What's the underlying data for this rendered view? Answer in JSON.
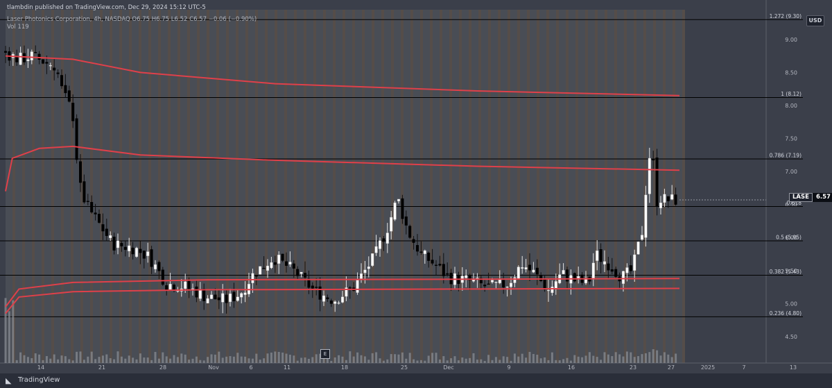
{
  "header": {
    "publisher": "tlambdin published on TradingView.com, Dec 29, 2024 15:12 UTC-5",
    "symbol_line": "Laser Photonics Corporation, 4h, NASDAQ  O6.75  H6.75  L6.52  C6.57  −0.06 (−0.90%)",
    "vol_line": "Vol  119"
  },
  "currency": "USD",
  "price_label": {
    "ticker": "LASE",
    "value": "6.57"
  },
  "footer": {
    "logo_icon": "tradingview-logo-icon",
    "text": "TradingView"
  },
  "earnings_marker": "E",
  "colors": {
    "background": "#3b3f4a",
    "band_session": "#56595f",
    "band_extended": "#6b5a48",
    "up_candle": "#ffffff",
    "down_candle": "#000000",
    "vwap_line": "#e0404a",
    "fib_line": "#000000",
    "volume_bar": "#8c8f96"
  },
  "chart_data": {
    "type": "candlestick",
    "x_tick_labels": [
      "14",
      "21",
      "28",
      "Nov",
      "6",
      "11",
      "18",
      "25",
      "Dec",
      "9",
      "16",
      "23",
      "27",
      "2025",
      "7",
      "13"
    ],
    "y_tick_labels": [
      "9.00",
      "8.50",
      "8.00",
      "7.50",
      "7.00",
      "6.50",
      "6.00",
      "5.50",
      "5.00",
      "4.50"
    ],
    "y_ticks": [
      9.0,
      8.5,
      8.0,
      7.5,
      7.0,
      6.5,
      6.0,
      5.5,
      5.0,
      4.5
    ],
    "ylim": [
      4.1,
      9.45
    ],
    "fib_levels": [
      {
        "label": "1.272 (9.30)",
        "price": 9.3
      },
      {
        "label": "1 (8.12)",
        "price": 8.12
      },
      {
        "label": "0.786 (7.19)",
        "price": 7.19
      },
      {
        "label": "0.618",
        "price": 6.47
      },
      {
        "label": "0.5 (5.95)",
        "price": 5.95
      },
      {
        "label": "0.382 (5.43)",
        "price": 5.43
      },
      {
        "label": "0.236 (4.80)",
        "price": 4.8
      }
    ],
    "close_path": [
      [
        0,
        8.8
      ],
      [
        0.02,
        8.7
      ],
      [
        0.04,
        8.75
      ],
      [
        0.06,
        8.65
      ],
      [
        0.075,
        8.6
      ],
      [
        0.085,
        8.2
      ],
      [
        0.1,
        7.9
      ],
      [
        0.11,
        6.8
      ],
      [
        0.12,
        6.5
      ],
      [
        0.14,
        6.2
      ],
      [
        0.16,
        5.9
      ],
      [
        0.19,
        5.85
      ],
      [
        0.215,
        5.7
      ],
      [
        0.24,
        5.3
      ],
      [
        0.27,
        5.25
      ],
      [
        0.3,
        5.1
      ],
      [
        0.33,
        5.05
      ],
      [
        0.35,
        5.15
      ],
      [
        0.37,
        5.45
      ],
      [
        0.4,
        5.7
      ],
      [
        0.43,
        5.5
      ],
      [
        0.46,
        5.2
      ],
      [
        0.49,
        5.05
      ],
      [
        0.52,
        5.25
      ],
      [
        0.55,
        5.7
      ],
      [
        0.57,
        6.15
      ],
      [
        0.585,
        6.6
      ],
      [
        0.6,
        6.1
      ],
      [
        0.62,
        5.75
      ],
      [
        0.64,
        5.6
      ],
      [
        0.66,
        5.4
      ],
      [
        0.69,
        5.35
      ],
      [
        0.72,
        5.25
      ],
      [
        0.75,
        5.3
      ],
      [
        0.77,
        5.6
      ],
      [
        0.79,
        5.45
      ],
      [
        0.81,
        5.2
      ],
      [
        0.83,
        5.45
      ],
      [
        0.85,
        5.35
      ],
      [
        0.87,
        5.3
      ],
      [
        0.88,
        5.75
      ],
      [
        0.9,
        5.6
      ],
      [
        0.92,
        5.4
      ],
      [
        0.935,
        5.5
      ],
      [
        0.95,
        6.1
      ],
      [
        0.96,
        7.25
      ],
      [
        0.967,
        7.1
      ],
      [
        0.972,
        6.55
      ],
      [
        0.978,
        6.6
      ],
      [
        0.985,
        6.57
      ],
      [
        1,
        6.57
      ]
    ],
    "vwap_lines": [
      {
        "name": "",
        "points": [
          [
            0,
            8.75
          ],
          [
            0.1,
            8.7
          ],
          [
            0.2,
            8.5
          ],
          [
            0.4,
            8.33
          ],
          [
            0.7,
            8.22
          ],
          [
            1,
            8.15
          ]
        ]
      },
      {
        "name": "",
        "points": [
          [
            0,
            6.7
          ],
          [
            0.01,
            7.2
          ],
          [
            0.05,
            7.35
          ],
          [
            0.1,
            7.38
          ],
          [
            0.2,
            7.25
          ],
          [
            0.4,
            7.17
          ],
          [
            0.7,
            7.08
          ],
          [
            1,
            7.02
          ]
        ]
      },
      {
        "name": "",
        "points": [
          [
            0,
            4.95
          ],
          [
            0.02,
            5.22
          ],
          [
            0.1,
            5.32
          ],
          [
            0.3,
            5.36
          ],
          [
            0.7,
            5.37
          ],
          [
            1,
            5.38
          ]
        ]
      },
      {
        "name": "",
        "points": [
          [
            0,
            4.85
          ],
          [
            0.02,
            5.1
          ],
          [
            0.1,
            5.18
          ],
          [
            0.3,
            5.21
          ],
          [
            0.7,
            5.22
          ],
          [
            1,
            5.23
          ]
        ]
      }
    ],
    "volume": {
      "latest": 119
    }
  }
}
